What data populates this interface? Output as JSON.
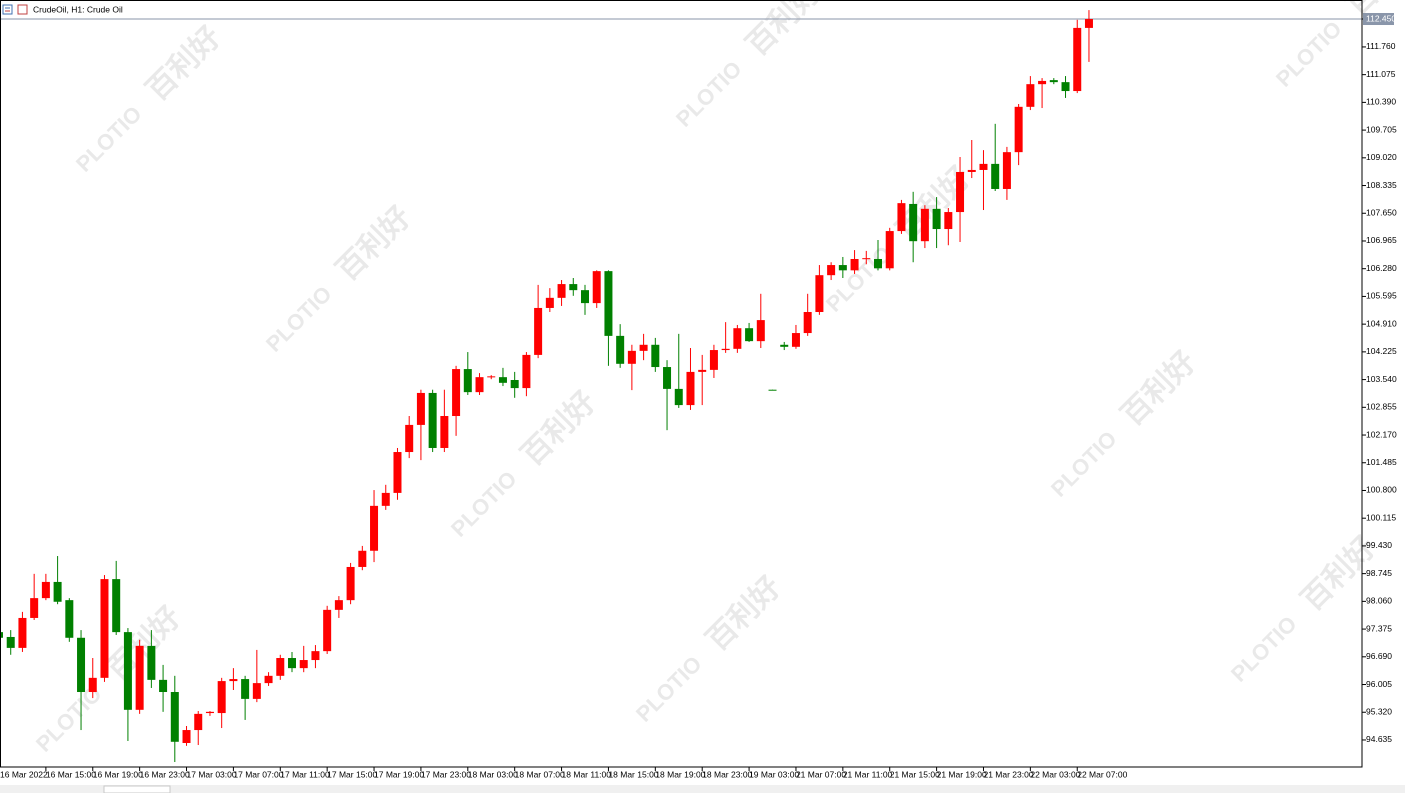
{
  "header": {
    "title": "CrudeOil, H1:  Crude Oil"
  },
  "watermark": {
    "brand": "PLOTIO",
    "chinese": "百利好"
  },
  "chart_data": {
    "type": "candlestick",
    "up_color": "#ff0000",
    "down_color": "#008000",
    "price_line_color": "#8a96aa",
    "ylim": [
      93.967,
      112.895
    ],
    "yticks": [
      {
        "value": 112.45,
        "label": "112.450"
      },
      {
        "value": 111.76,
        "label": "111.760"
      },
      111.075,
      {
        "value": 110.39,
        "label": "110.390"
      },
      109.705,
      {
        "value": 109.02,
        "label": "109.020"
      },
      108.335,
      {
        "value": 107.65,
        "label": "107.650"
      },
      106.965,
      {
        "value": 106.28,
        "label": "106.280"
      },
      105.595,
      {
        "value": 104.91,
        "label": "104.910"
      },
      104.225,
      {
        "value": 103.54,
        "label": "103.540"
      },
      102.855,
      {
        "value": 102.17,
        "label": "102.170"
      },
      101.485,
      {
        "value": 100.8,
        "label": "100.800"
      },
      100.115,
      {
        "value": 99.43,
        "label": "99.430"
      },
      98.745,
      {
        "value": 98.06,
        "label": "98.060"
      },
      97.375,
      {
        "value": 96.69,
        "label": "96.690"
      },
      96.005,
      {
        "value": 95.32,
        "label": "95.320"
      },
      94.635
    ],
    "categories": [
      "16 Mar 2022",
      null,
      null,
      null,
      "16 Mar 15:00",
      null,
      null,
      null,
      "16 Mar 19:00",
      null,
      null,
      null,
      "16 Mar 23:00",
      null,
      null,
      null,
      "17 Mar 03:00",
      null,
      null,
      null,
      "17 Mar 07:00",
      null,
      null,
      null,
      "17 Mar 11:00",
      null,
      null,
      null,
      "17 Mar 15:00",
      null,
      null,
      null,
      "17 Mar 19:00",
      null,
      null,
      null,
      "17 Mar 23:00",
      null,
      null,
      null,
      "18 Mar 03:00",
      null,
      null,
      null,
      "18 Mar 07:00",
      null,
      null,
      null,
      "18 Mar 11:00",
      null,
      null,
      null,
      "18 Mar 15:00",
      null,
      null,
      null,
      "18 Mar 19:00",
      null,
      null,
      null,
      "18 Mar 23:00",
      null,
      null,
      null,
      "19 Mar 03:00",
      null,
      null,
      null,
      "21 Mar 07:00",
      null,
      null,
      null,
      "21 Mar 11:00",
      null,
      null,
      null,
      "21 Mar 15:00",
      null,
      null,
      null,
      "21 Mar 19:00",
      null,
      null,
      null,
      "21 Mar 23:00",
      null,
      null,
      null,
      "22 Mar 03:00",
      null,
      null,
      null,
      "22 Mar 07:00",
      null
    ],
    "open": [
      97.3,
      97.18,
      96.91,
      97.65,
      98.14,
      98.54,
      98.09,
      97.16,
      95.82,
      96.17,
      98.61,
      97.3,
      95.38,
      96.96,
      96.12,
      95.82,
      94.56,
      94.88,
      95.3,
      95.3,
      96.09,
      96.14,
      95.65,
      96.04,
      96.22,
      96.66,
      96.41,
      96.61,
      96.83,
      97.85,
      98.09,
      98.91,
      99.31,
      100.42,
      100.74,
      101.75,
      102.42,
      103.21,
      101.85,
      102.64,
      103.8,
      103.23,
      103.6,
      103.6,
      103.53,
      103.33,
      104.15,
      105.31,
      105.56,
      105.9,
      105.75,
      105.43,
      106.22,
      104.62,
      103.93,
      104.25,
      104.4,
      103.85,
      103.31,
      102.91,
      103.73,
      103.78,
      104.27,
      104.3,
      104.81,
      104.49,
      103.29,
      104.4,
      104.35,
      104.69,
      105.21,
      106.12,
      106.37,
      106.24,
      106.52,
      106.52,
      106.29,
      107.21,
      107.88,
      106.96,
      107.76,
      107.26,
      107.68,
      108.67,
      108.72,
      108.87,
      108.25,
      109.16,
      110.28,
      110.84,
      110.94,
      110.89,
      110.67,
      112.23
    ],
    "high": [
      97.35,
      97.35,
      97.8,
      98.74,
      98.74,
      99.18,
      98.14,
      97.35,
      96.66,
      98.71,
      99.06,
      97.4,
      97.11,
      97.35,
      96.49,
      96.22,
      94.98,
      95.35,
      95.35,
      96.17,
      96.41,
      96.22,
      96.86,
      96.31,
      96.74,
      96.81,
      96.96,
      96.98,
      97.95,
      98.19,
      99.01,
      99.43,
      100.81,
      100.94,
      101.85,
      102.64,
      103.29,
      103.29,
      103.29,
      103.88,
      104.22,
      103.7,
      103.65,
      103.83,
      103.73,
      104.22,
      105.88,
      105.8,
      106.0,
      106.05,
      105.88,
      106.24,
      106.24,
      104.91,
      104.4,
      104.67,
      104.57,
      104.02,
      104.67,
      104.32,
      104.15,
      104.4,
      104.96,
      104.89,
      104.94,
      105.66,
      103.29,
      104.47,
      104.89,
      105.66,
      106.37,
      106.44,
      106.57,
      106.74,
      106.72,
      106.99,
      107.29,
      107.98,
      108.18,
      107.85,
      108.05,
      107.78,
      109.04,
      109.46,
      109.21,
      109.86,
      109.29,
      110.35,
      111.04,
      110.99,
      110.99,
      111.04,
      112.43,
      112.67
    ],
    "low": [
      97.1,
      96.74,
      96.81,
      97.6,
      98.09,
      97.99,
      97.06,
      94.88,
      95.67,
      96.07,
      97.23,
      94.61,
      95.28,
      95.92,
      95.33,
      94.09,
      94.49,
      94.51,
      95.23,
      94.93,
      95.87,
      95.13,
      95.57,
      95.97,
      96.12,
      96.31,
      96.31,
      96.41,
      96.76,
      97.65,
      97.99,
      98.83,
      99.03,
      100.32,
      100.57,
      101.6,
      101.55,
      101.75,
      101.75,
      102.15,
      103.16,
      103.16,
      103.55,
      103.38,
      103.09,
      103.13,
      104.07,
      105.21,
      105.36,
      105.61,
      105.14,
      105.31,
      103.88,
      103.83,
      103.28,
      104.02,
      103.73,
      102.29,
      102.84,
      102.79,
      102.91,
      103.58,
      104.2,
      104.2,
      104.47,
      104.32,
      103.28,
      104.27,
      104.3,
      104.62,
      105.14,
      106.0,
      106.05,
      106.15,
      106.39,
      106.24,
      106.24,
      107.14,
      106.44,
      106.79,
      106.79,
      106.86,
      106.94,
      108.52,
      107.73,
      108.2,
      107.98,
      108.84,
      110.2,
      110.25,
      110.84,
      110.5,
      110.62,
      111.39
    ],
    "close": [
      97.16,
      96.91,
      97.65,
      98.14,
      98.54,
      98.05,
      97.16,
      95.82,
      96.17,
      98.61,
      97.3,
      95.38,
      96.96,
      96.12,
      95.82,
      94.59,
      94.88,
      95.28,
      95.33,
      96.09,
      96.14,
      95.65,
      96.04,
      96.22,
      96.66,
      96.41,
      96.61,
      96.83,
      97.85,
      98.09,
      98.91,
      99.31,
      100.42,
      100.74,
      101.75,
      102.42,
      103.21,
      101.85,
      102.64,
      103.8,
      103.23,
      103.6,
      103.62,
      103.46,
      103.33,
      104.15,
      105.31,
      105.56,
      105.9,
      105.75,
      105.43,
      106.22,
      104.62,
      103.93,
      104.25,
      104.4,
      103.85,
      103.31,
      102.91,
      103.73,
      103.78,
      104.27,
      104.3,
      104.81,
      104.49,
      105.01,
      103.28,
      104.35,
      104.69,
      105.21,
      106.12,
      106.37,
      106.24,
      106.52,
      106.54,
      106.29,
      107.21,
      107.9,
      106.96,
      107.76,
      107.26,
      107.68,
      108.67,
      108.72,
      108.87,
      108.25,
      109.16,
      110.28,
      110.84,
      110.92,
      110.89,
      110.67,
      112.23,
      112.45
    ]
  }
}
